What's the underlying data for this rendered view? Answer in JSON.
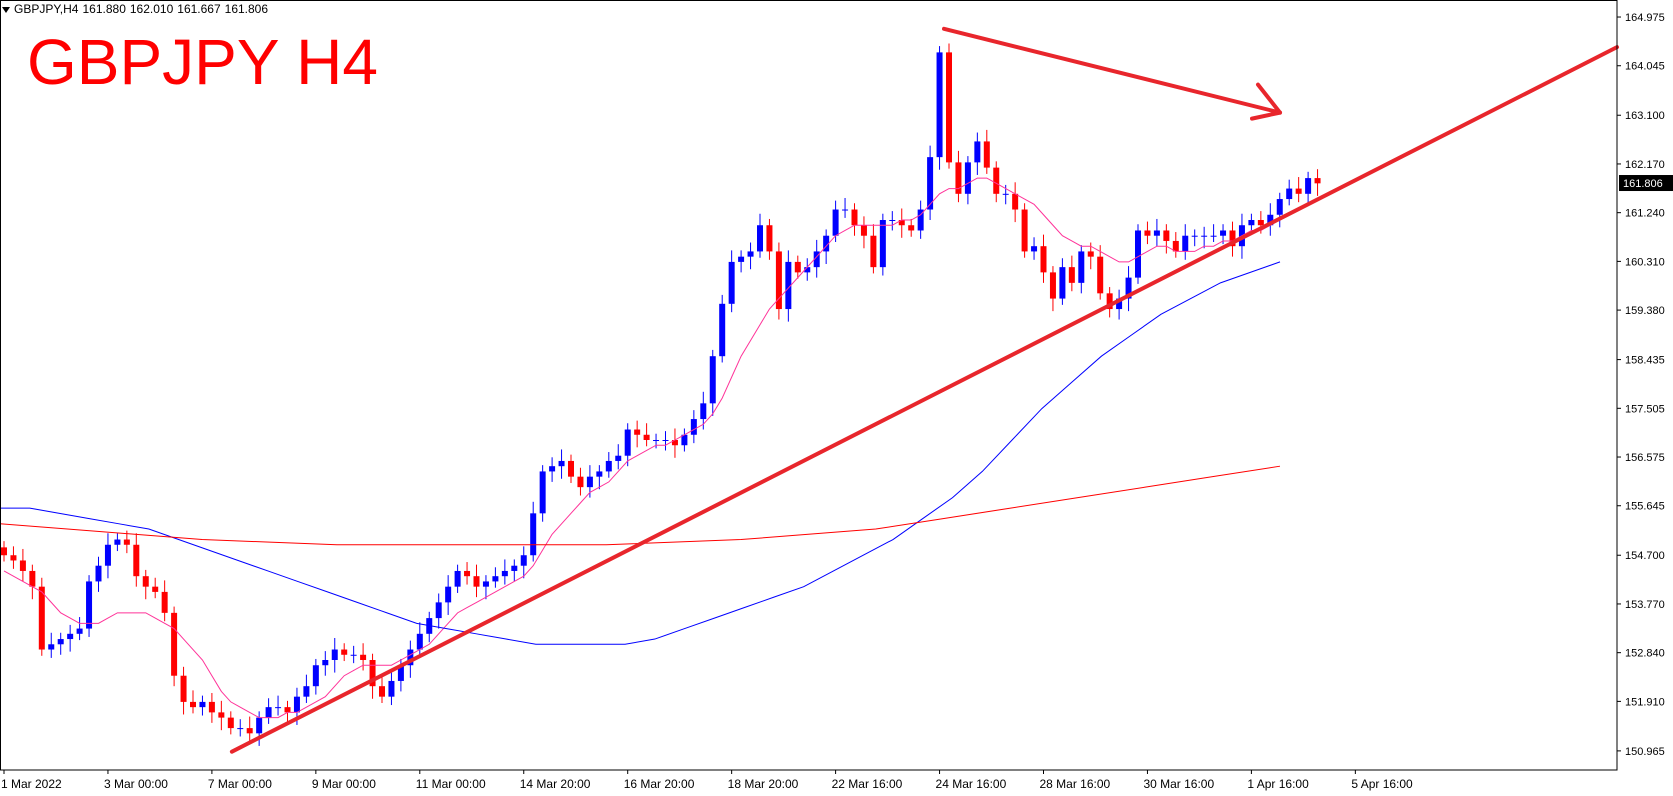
{
  "header": {
    "symbol": "GBPJPY,H4",
    "open": "161.880",
    "high": "162.010",
    "low": "161.667",
    "close": "161.806"
  },
  "title_overlay": "GBPJPY H4",
  "chart_data": {
    "type": "candlestick",
    "symbol": "GBPJPY",
    "timeframe": "H4",
    "ylim": [
      150.6,
      165.3
    ],
    "y_ticks": [
      "164.975",
      "164.045",
      "163.100",
      "162.170",
      "161.240",
      "160.310",
      "159.380",
      "158.435",
      "157.505",
      "156.575",
      "155.645",
      "154.700",
      "153.770",
      "152.840",
      "151.910",
      "150.965"
    ],
    "x_ticks": [
      {
        "label": "1 Mar 2022",
        "bar": 0
      },
      {
        "label": "3 Mar 00:00",
        "bar": 11
      },
      {
        "label": "7 Mar 00:00",
        "bar": 22
      },
      {
        "label": "9 Mar 00:00",
        "bar": 33
      },
      {
        "label": "11 Mar 00:00",
        "bar": 44
      },
      {
        "label": "14 Mar 20:00",
        "bar": 55
      },
      {
        "label": "16 Mar 20:00",
        "bar": 66
      },
      {
        "label": "18 Mar 20:00",
        "bar": 77
      },
      {
        "label": "22 Mar 16:00",
        "bar": 88
      },
      {
        "label": "24 Mar 16:00",
        "bar": 99
      },
      {
        "label": "28 Mar 16:00",
        "bar": 110
      },
      {
        "label": "30 Mar 16:00",
        "bar": 121
      },
      {
        "label": "1 Apr 16:00",
        "bar": 132
      },
      {
        "label": "5 Apr 16:00",
        "bar": 143
      }
    ],
    "current_price": "161.806",
    "colors": {
      "bull": "#0000ff",
      "bear": "#ff0000",
      "ma_fast": "#ff3399",
      "ma_mid": "#0000ff",
      "ma_slow": "#ff0000",
      "drawing": "#e8262c"
    },
    "ohlc_close": [
      154.7,
      154.6,
      154.4,
      154.1,
      152.9,
      153.0,
      153.1,
      153.2,
      153.3,
      154.2,
      154.5,
      154.9,
      155.0,
      154.9,
      154.3,
      154.1,
      154.0,
      153.6,
      152.4,
      151.9,
      151.8,
      151.9,
      151.7,
      151.6,
      151.4,
      151.4,
      151.3,
      151.6,
      151.8,
      151.8,
      151.7,
      152.0,
      152.2,
      152.6,
      152.7,
      152.9,
      152.8,
      152.8,
      152.7,
      152.2,
      152.0,
      152.3,
      152.6,
      152.9,
      153.2,
      153.5,
      153.8,
      154.1,
      154.4,
      154.3,
      154.1,
      154.2,
      154.3,
      154.4,
      154.5,
      154.7,
      155.5,
      156.3,
      156.4,
      156.5,
      156.2,
      156.0,
      156.2,
      156.3,
      156.5,
      156.6,
      157.1,
      157.0,
      156.9,
      156.9,
      156.9,
      156.8,
      157.0,
      157.3,
      157.6,
      158.5,
      159.5,
      160.3,
      160.4,
      160.5,
      161.0,
      160.5,
      159.4,
      160.3,
      160.1,
      160.2,
      160.5,
      160.8,
      161.3,
      161.3,
      161.0,
      160.8,
      160.2,
      161.1,
      161.1,
      161.0,
      160.9,
      161.3,
      162.3,
      164.3,
      162.2,
      161.6,
      162.2,
      162.6,
      162.1,
      161.6,
      161.6,
      161.3,
      160.5,
      160.6,
      160.1,
      159.6,
      160.2,
      159.9,
      160.5,
      160.4,
      159.7,
      159.4,
      159.6,
      160.0,
      160.9,
      160.8,
      160.9,
      160.7,
      160.5,
      160.8,
      160.8,
      160.8,
      160.8,
      160.9,
      160.6,
      161.0,
      161.1,
      161.0,
      161.2,
      161.5,
      161.7,
      161.6,
      161.9,
      161.8
    ],
    "ma_fast": {
      "name": "",
      "from_bar": 0,
      "values": [
        154.4,
        154.3,
        154.2,
        154.1,
        154.0,
        153.8,
        153.6,
        153.5,
        153.4,
        153.4,
        153.4,
        153.5,
        153.6,
        153.6,
        153.6,
        153.6,
        153.5,
        153.4,
        153.3,
        153.1,
        152.9,
        152.7,
        152.4,
        152.1,
        151.9,
        151.8,
        151.7,
        151.6,
        151.6,
        151.6,
        151.7,
        151.7,
        151.8,
        151.9,
        152.0,
        152.2,
        152.4,
        152.5,
        152.6,
        152.6,
        152.6,
        152.6,
        152.7,
        152.8,
        152.9,
        153.0,
        153.2,
        153.4,
        153.6,
        153.7,
        153.8,
        153.9,
        154.0,
        154.1,
        154.2,
        154.3,
        154.5,
        154.8,
        155.1,
        155.3,
        155.5,
        155.7,
        155.9,
        156.0,
        156.1,
        156.3,
        156.5,
        156.6,
        156.7,
        156.8,
        156.8,
        156.9,
        157.0,
        157.1,
        157.2,
        157.4,
        157.7,
        158.1,
        158.5,
        158.8,
        159.1,
        159.4,
        159.6,
        159.8,
        160.0,
        160.2,
        160.4,
        160.6,
        160.8,
        160.9,
        161.0,
        161.0,
        161.0,
        161.0,
        161.0,
        161.1,
        161.1,
        161.2,
        161.4,
        161.6,
        161.7,
        161.7,
        161.8,
        161.9,
        161.9,
        161.8,
        161.7,
        161.6,
        161.5,
        161.4,
        161.2,
        161.0,
        160.8,
        160.7,
        160.6,
        160.6,
        160.5,
        160.4,
        160.3,
        160.3,
        160.4,
        160.5,
        160.6,
        160.6,
        160.5,
        160.5,
        160.5,
        160.6,
        160.6,
        160.7,
        160.7,
        160.8,
        160.9,
        160.9,
        161.0,
        161.1
      ]
    },
    "ma_mid": {
      "name": "",
      "from_bar": -2,
      "values": [
        155.6,
        155.6,
        155.5,
        155.4,
        155.3,
        155.2,
        155.0,
        154.8,
        154.6,
        154.4,
        154.2,
        154.0,
        153.8,
        153.6,
        153.4,
        153.3,
        153.2,
        153.1,
        153.0,
        153.0,
        153.0,
        153.0,
        153.1,
        153.3,
        153.5,
        153.7,
        153.9,
        154.1,
        154.4,
        154.7,
        155.0,
        155.4,
        155.8,
        156.3,
        156.9,
        157.5,
        158.0,
        158.5,
        158.9,
        159.3,
        159.6,
        159.9,
        160.1,
        160.3
      ]
    },
    "ma_mid_bars": [
      0,
      5,
      10,
      15,
      20,
      25,
      30,
      35,
      40,
      45,
      50,
      55,
      60,
      65,
      70,
      75,
      80,
      85,
      90,
      95,
      100,
      105,
      110,
      115,
      120,
      125,
      130,
      135,
      140,
      145,
      150,
      155,
      160,
      165,
      170,
      175,
      180,
      185,
      190,
      195,
      200,
      205,
      210,
      215
    ],
    "ma_slow": {
      "name": "",
      "values": [
        155.3,
        155.2,
        155.1,
        155.0,
        154.95,
        154.9,
        154.9,
        154.9,
        154.9,
        154.9,
        154.95,
        155.0,
        155.1,
        155.2,
        155.4,
        155.6,
        155.8,
        156.0,
        156.2,
        156.4
      ]
    },
    "trendline_up": {
      "from": {
        "bar": 22,
        "price": 150.95
      },
      "to": {
        "bar": 175,
        "price": 164.4
      }
    },
    "arrow_down": {
      "from": {
        "bar": 100,
        "price": 164.75
      },
      "to": {
        "bar": 139,
        "price": 163.15
      }
    }
  }
}
